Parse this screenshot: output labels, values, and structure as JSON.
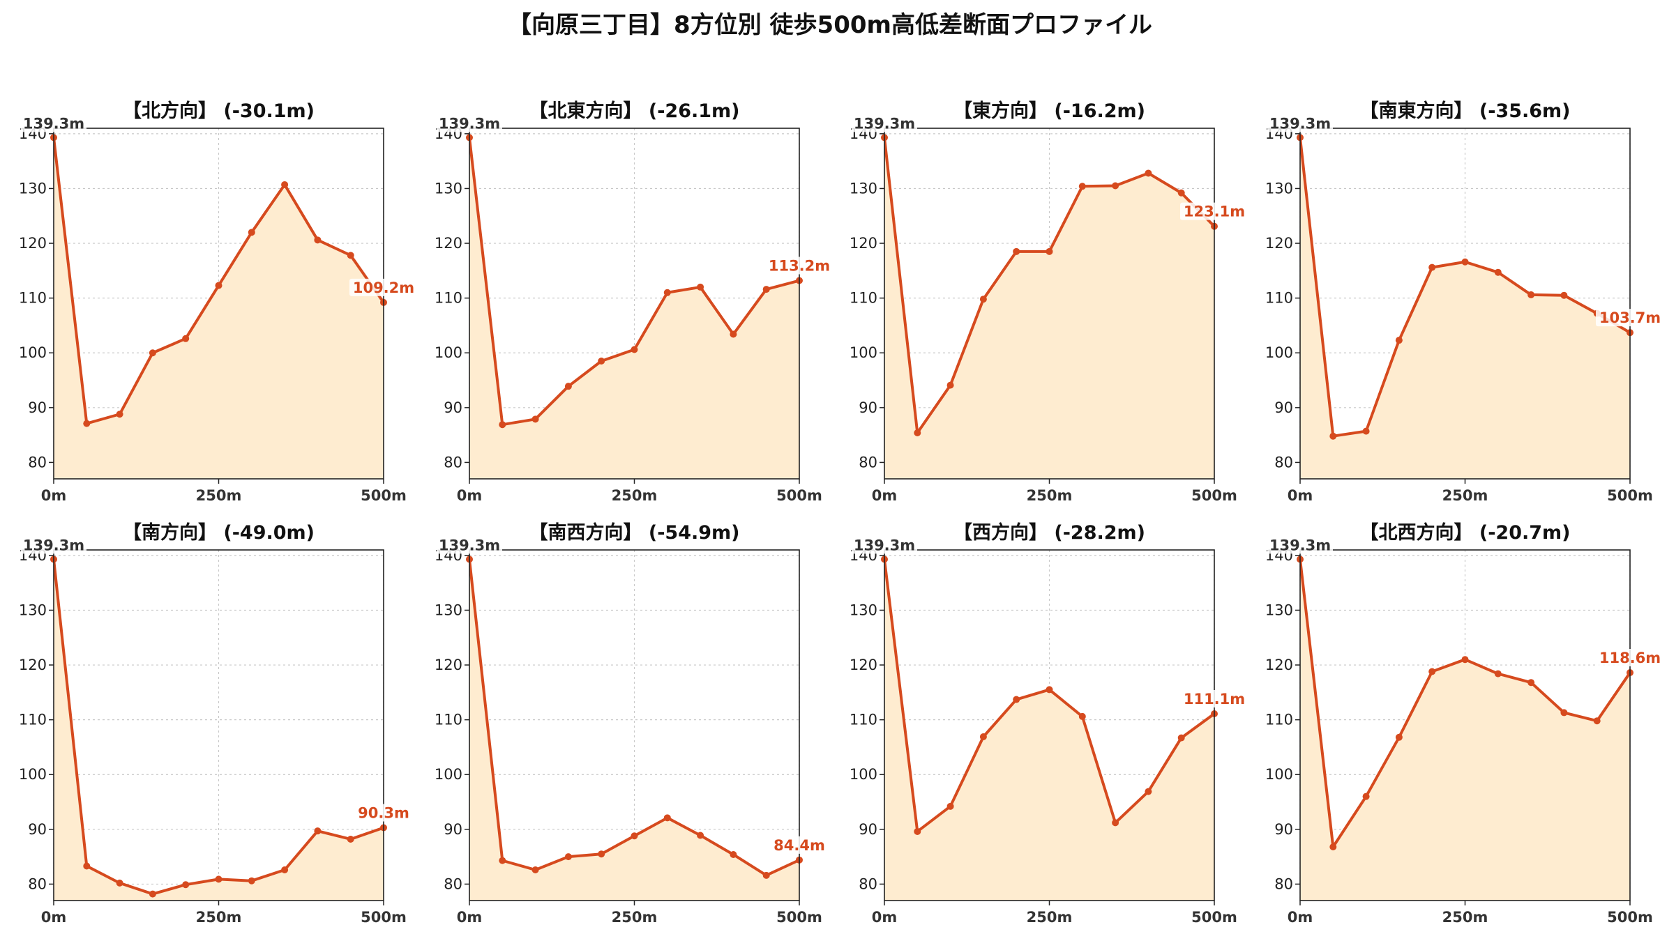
{
  "title": "【向原三丁目】8方位別 徒歩500m高低差断面プロファイル",
  "chart_data": [
    {
      "type": "line",
      "title": "【北方向】 (-30.1m)",
      "x": [
        0,
        50,
        100,
        150,
        200,
        250,
        300,
        350,
        400,
        450,
        500
      ],
      "values": [
        139.3,
        87.1,
        88.8,
        100.0,
        102.6,
        112.3,
        122.0,
        130.7,
        120.6,
        117.8,
        109.2
      ],
      "start_label": "139.3m",
      "end_label": "109.2m",
      "xlim": [
        0,
        500
      ],
      "ylim": [
        77,
        141
      ],
      "x_ticks": [
        0,
        250,
        500
      ],
      "x_tick_labels": [
        "0m",
        "250m",
        "500m"
      ],
      "y_ticks": [
        80,
        90,
        100,
        110,
        120,
        130,
        140
      ],
      "grid": true
    },
    {
      "type": "line",
      "title": "【北東方向】 (-26.1m)",
      "x": [
        0,
        50,
        100,
        150,
        200,
        250,
        300,
        350,
        400,
        450,
        500
      ],
      "values": [
        139.3,
        86.9,
        87.9,
        93.9,
        98.5,
        100.6,
        111.0,
        112.0,
        103.4,
        111.6,
        113.2
      ],
      "start_label": "139.3m",
      "end_label": "113.2m",
      "xlim": [
        0,
        500
      ],
      "ylim": [
        77,
        141
      ],
      "x_ticks": [
        0,
        250,
        500
      ],
      "x_tick_labels": [
        "0m",
        "250m",
        "500m"
      ],
      "y_ticks": [
        80,
        90,
        100,
        110,
        120,
        130,
        140
      ],
      "grid": true
    },
    {
      "type": "line",
      "title": "【東方向】 (-16.2m)",
      "x": [
        0,
        50,
        100,
        150,
        200,
        250,
        300,
        350,
        400,
        450,
        500
      ],
      "values": [
        139.3,
        85.4,
        94.1,
        109.8,
        118.5,
        118.5,
        130.4,
        130.5,
        132.8,
        129.2,
        123.1
      ],
      "start_label": "139.3m",
      "end_label": "123.1m",
      "xlim": [
        0,
        500
      ],
      "ylim": [
        77,
        141
      ],
      "x_ticks": [
        0,
        250,
        500
      ],
      "x_tick_labels": [
        "0m",
        "250m",
        "500m"
      ],
      "y_ticks": [
        80,
        90,
        100,
        110,
        120,
        130,
        140
      ],
      "grid": true
    },
    {
      "type": "line",
      "title": "【南東方向】 (-35.6m)",
      "x": [
        0,
        50,
        100,
        150,
        200,
        250,
        300,
        350,
        400,
        450,
        500
      ],
      "values": [
        139.3,
        84.8,
        85.7,
        102.3,
        115.6,
        116.6,
        114.7,
        110.6,
        110.5,
        107.2,
        103.7
      ],
      "start_label": "139.3m",
      "end_label": "103.7m",
      "xlim": [
        0,
        500
      ],
      "ylim": [
        77,
        141
      ],
      "x_ticks": [
        0,
        250,
        500
      ],
      "x_tick_labels": [
        "0m",
        "250m",
        "500m"
      ],
      "y_ticks": [
        80,
        90,
        100,
        110,
        120,
        130,
        140
      ],
      "grid": true
    },
    {
      "type": "line",
      "title": "【南方向】 (-49.0m)",
      "x": [
        0,
        50,
        100,
        150,
        200,
        250,
        300,
        350,
        400,
        450,
        500
      ],
      "values": [
        139.3,
        83.3,
        80.2,
        78.2,
        79.9,
        80.9,
        80.6,
        82.6,
        89.7,
        88.2,
        90.3
      ],
      "start_label": "139.3m",
      "end_label": "90.3m",
      "xlim": [
        0,
        500
      ],
      "ylim": [
        77,
        141
      ],
      "x_ticks": [
        0,
        250,
        500
      ],
      "x_tick_labels": [
        "0m",
        "250m",
        "500m"
      ],
      "y_ticks": [
        80,
        90,
        100,
        110,
        120,
        130,
        140
      ],
      "grid": true
    },
    {
      "type": "line",
      "title": "【南西方向】 (-54.9m)",
      "x": [
        0,
        50,
        100,
        150,
        200,
        250,
        300,
        350,
        400,
        450,
        500
      ],
      "values": [
        139.3,
        84.3,
        82.6,
        85.0,
        85.5,
        88.8,
        92.1,
        88.9,
        85.4,
        81.6,
        84.4
      ],
      "start_label": "139.3m",
      "end_label": "84.4m",
      "xlim": [
        0,
        500
      ],
      "ylim": [
        77,
        141
      ],
      "x_ticks": [
        0,
        250,
        500
      ],
      "x_tick_labels": [
        "0m",
        "250m",
        "500m"
      ],
      "y_ticks": [
        80,
        90,
        100,
        110,
        120,
        130,
        140
      ],
      "grid": true
    },
    {
      "type": "line",
      "title": "【西方向】 (-28.2m)",
      "x": [
        0,
        50,
        100,
        150,
        200,
        250,
        300,
        350,
        400,
        450,
        500
      ],
      "values": [
        139.3,
        89.6,
        94.2,
        106.9,
        113.7,
        115.5,
        110.6,
        91.2,
        96.9,
        106.7,
        111.1
      ],
      "start_label": "139.3m",
      "end_label": "111.1m",
      "xlim": [
        0,
        500
      ],
      "ylim": [
        77,
        141
      ],
      "x_ticks": [
        0,
        250,
        500
      ],
      "x_tick_labels": [
        "0m",
        "250m",
        "500m"
      ],
      "y_ticks": [
        80,
        90,
        100,
        110,
        120,
        130,
        140
      ],
      "grid": true
    },
    {
      "type": "line",
      "title": "【北西方向】 (-20.7m)",
      "x": [
        0,
        50,
        100,
        150,
        200,
        250,
        300,
        350,
        400,
        450,
        500
      ],
      "values": [
        139.3,
        86.8,
        96.0,
        106.8,
        118.8,
        121.0,
        118.4,
        116.8,
        111.3,
        109.8,
        118.6
      ],
      "start_label": "139.3m",
      "end_label": "118.6m",
      "xlim": [
        0,
        500
      ],
      "ylim": [
        77,
        141
      ],
      "x_ticks": [
        0,
        250,
        500
      ],
      "x_tick_labels": [
        "0m",
        "250m",
        "500m"
      ],
      "y_ticks": [
        80,
        90,
        100,
        110,
        120,
        130,
        140
      ],
      "grid": true
    }
  ],
  "colors": {
    "line": "#d64a1e",
    "fill": "#feecd0",
    "start_label": "#333333",
    "end_label": "#d64a1e",
    "grid": "#c8c8c8"
  }
}
